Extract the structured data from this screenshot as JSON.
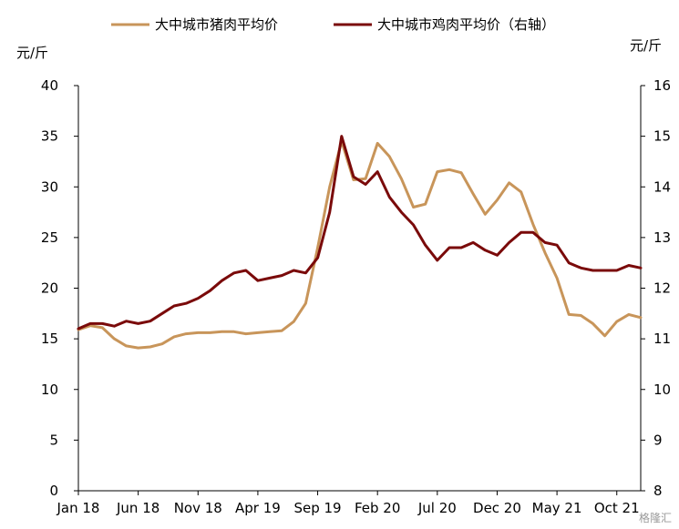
{
  "watermark": "格隆汇",
  "chart_data": {
    "type": "line",
    "legend_position": "top",
    "grid": false,
    "y_left": {
      "unit": "元/斤",
      "lim": [
        0,
        40
      ],
      "ticks": [
        "0",
        "5",
        "10",
        "15",
        "20",
        "25",
        "30",
        "35",
        "40"
      ]
    },
    "y_right": {
      "unit": "元/斤",
      "lim": [
        8,
        16
      ],
      "ticks": [
        "8",
        "9",
        "10",
        "11",
        "12",
        "13",
        "14",
        "15",
        "16"
      ]
    },
    "x": {
      "ticks": [
        {
          "label": "Jan 18",
          "date": "2018-01"
        },
        {
          "label": "Jun 18",
          "date": "2018-06"
        },
        {
          "label": "Nov 18",
          "date": "2018-11"
        },
        {
          "label": "Apr 19",
          "date": "2019-04"
        },
        {
          "label": "Sep 19",
          "date": "2019-09"
        },
        {
          "label": "Feb 20",
          "date": "2020-02"
        },
        {
          "label": "Jul 20",
          "date": "2020-07"
        },
        {
          "label": "Dec 20",
          "date": "2020-12"
        },
        {
          "label": "May 21",
          "date": "2021-05"
        },
        {
          "label": "Oct 21",
          "date": "2021-10"
        }
      ],
      "range": [
        "2018-01",
        "2021-12"
      ]
    },
    "series": [
      {
        "name": "大中城市猪肉平均价",
        "axis": "left",
        "color": "#C8955A",
        "points": [
          [
            "2018-01",
            15.9
          ],
          [
            "2018-02",
            16.3
          ],
          [
            "2018-03",
            16.1
          ],
          [
            "2018-04",
            15.0
          ],
          [
            "2018-05",
            14.3
          ],
          [
            "2018-06",
            14.1
          ],
          [
            "2018-07",
            14.2
          ],
          [
            "2018-08",
            14.5
          ],
          [
            "2018-09",
            15.2
          ],
          [
            "2018-10",
            15.5
          ],
          [
            "2018-11",
            15.6
          ],
          [
            "2018-12",
            15.6
          ],
          [
            "2019-01",
            15.7
          ],
          [
            "2019-02",
            15.7
          ],
          [
            "2019-03",
            15.5
          ],
          [
            "2019-04",
            15.6
          ],
          [
            "2019-05",
            15.7
          ],
          [
            "2019-06",
            15.8
          ],
          [
            "2019-07",
            16.7
          ],
          [
            "2019-08",
            18.5
          ],
          [
            "2019-09",
            24.0
          ],
          [
            "2019-10",
            30.0
          ],
          [
            "2019-11",
            34.5
          ],
          [
            "2019-12",
            30.7
          ],
          [
            "2020-01",
            30.8
          ],
          [
            "2020-02",
            34.3
          ],
          [
            "2020-03",
            33.0
          ],
          [
            "2020-04",
            30.8
          ],
          [
            "2020-05",
            28.0
          ],
          [
            "2020-06",
            28.3
          ],
          [
            "2020-07",
            31.5
          ],
          [
            "2020-08",
            31.7
          ],
          [
            "2020-09",
            31.4
          ],
          [
            "2020-10",
            29.3
          ],
          [
            "2020-11",
            27.3
          ],
          [
            "2020-12",
            28.7
          ],
          [
            "2021-01",
            30.4
          ],
          [
            "2021-02",
            29.5
          ],
          [
            "2021-03",
            26.3
          ],
          [
            "2021-04",
            23.5
          ],
          [
            "2021-05",
            21.0
          ],
          [
            "2021-06",
            17.4
          ],
          [
            "2021-07",
            17.3
          ],
          [
            "2021-08",
            16.5
          ],
          [
            "2021-09",
            15.3
          ],
          [
            "2021-10",
            16.7
          ],
          [
            "2021-11",
            17.4
          ],
          [
            "2021-12",
            17.1
          ]
        ]
      },
      {
        "name": "大中城市鸡肉平均价（右轴）",
        "axis": "right",
        "color": "#7A0A0A",
        "points": [
          [
            "2018-01",
            11.2
          ],
          [
            "2018-02",
            11.3
          ],
          [
            "2018-03",
            11.3
          ],
          [
            "2018-04",
            11.25
          ],
          [
            "2018-05",
            11.35
          ],
          [
            "2018-06",
            11.3
          ],
          [
            "2018-07",
            11.35
          ],
          [
            "2018-08",
            11.5
          ],
          [
            "2018-09",
            11.65
          ],
          [
            "2018-10",
            11.7
          ],
          [
            "2018-11",
            11.8
          ],
          [
            "2018-12",
            11.95
          ],
          [
            "2019-01",
            12.15
          ],
          [
            "2019-02",
            12.3
          ],
          [
            "2019-03",
            12.35
          ],
          [
            "2019-04",
            12.15
          ],
          [
            "2019-05",
            12.2
          ],
          [
            "2019-06",
            12.25
          ],
          [
            "2019-07",
            12.35
          ],
          [
            "2019-08",
            12.3
          ],
          [
            "2019-09",
            12.6
          ],
          [
            "2019-10",
            13.5
          ],
          [
            "2019-11",
            15.0
          ],
          [
            "2019-12",
            14.2
          ],
          [
            "2020-01",
            14.05
          ],
          [
            "2020-02",
            14.3
          ],
          [
            "2020-03",
            13.8
          ],
          [
            "2020-04",
            13.5
          ],
          [
            "2020-05",
            13.25
          ],
          [
            "2020-06",
            12.85
          ],
          [
            "2020-07",
            12.55
          ],
          [
            "2020-08",
            12.8
          ],
          [
            "2020-09",
            12.8
          ],
          [
            "2020-10",
            12.9
          ],
          [
            "2020-11",
            12.75
          ],
          [
            "2020-12",
            12.65
          ],
          [
            "2021-01",
            12.9
          ],
          [
            "2021-02",
            13.1
          ],
          [
            "2021-03",
            13.1
          ],
          [
            "2021-04",
            12.9
          ],
          [
            "2021-05",
            12.85
          ],
          [
            "2021-06",
            12.5
          ],
          [
            "2021-07",
            12.4
          ],
          [
            "2021-08",
            12.35
          ],
          [
            "2021-09",
            12.35
          ],
          [
            "2021-10",
            12.35
          ],
          [
            "2021-11",
            12.45
          ],
          [
            "2021-12",
            12.4
          ]
        ]
      }
    ]
  }
}
